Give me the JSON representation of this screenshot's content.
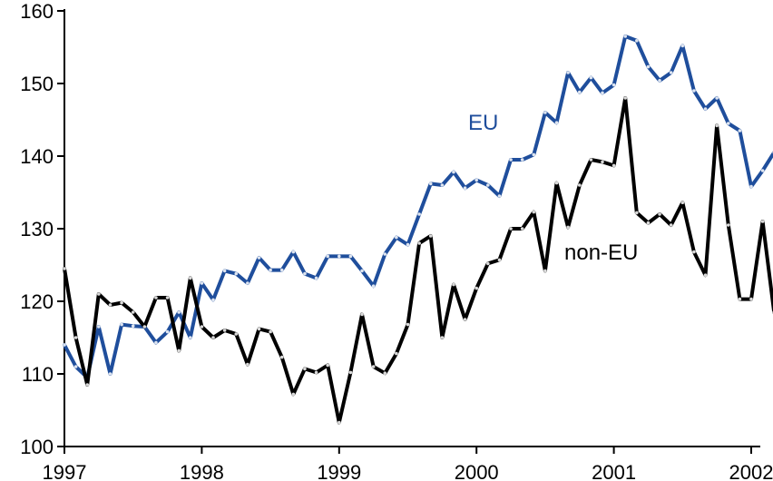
{
  "chart_data": {
    "type": "line",
    "title": "",
    "xlabel": "",
    "ylabel": "",
    "ylim": [
      100,
      160
    ],
    "xlim": [
      "1997-01",
      "2002-03"
    ],
    "y_ticks": [
      100,
      110,
      120,
      130,
      140,
      150,
      160
    ],
    "y_tick_labels": [
      "100",
      "110",
      "120",
      "130",
      "140",
      "150",
      "160"
    ],
    "x_ticks": [
      "1997-01",
      "1998-01",
      "1999-01",
      "2000-01",
      "2001-01",
      "2002-01"
    ],
    "x_tick_labels": [
      "1997",
      "1998",
      "1999",
      "2000",
      "2001",
      "2002"
    ],
    "grid": false,
    "legend": "inline labels",
    "series": [
      {
        "name": "EU",
        "color": "#1f4e9c",
        "x": [
          "1997-01",
          "1997-02",
          "1997-03",
          "1997-04",
          "1997-05",
          "1997-06",
          "1997-07",
          "1997-08",
          "1997-09",
          "1997-10",
          "1997-11",
          "1997-12",
          "1998-01",
          "1998-02",
          "1998-03",
          "1998-04",
          "1998-05",
          "1998-06",
          "1998-07",
          "1998-08",
          "1998-09",
          "1998-10",
          "1998-11",
          "1998-12",
          "1999-01",
          "1999-02",
          "1999-03",
          "1999-04",
          "1999-05",
          "1999-06",
          "1999-07",
          "1999-08",
          "1999-09",
          "1999-10",
          "1999-11",
          "1999-12",
          "2000-01",
          "2000-02",
          "2000-03",
          "2000-04",
          "2000-05",
          "2000-06",
          "2000-07",
          "2000-08",
          "2000-09",
          "2000-10",
          "2000-11",
          "2000-12",
          "2001-01",
          "2001-02",
          "2001-03",
          "2001-04",
          "2001-05",
          "2001-06",
          "2001-07",
          "2001-08",
          "2001-09",
          "2001-10",
          "2001-11",
          "2001-12",
          "2002-01",
          "2002-02",
          "2002-03"
        ],
        "y": [
          114.0,
          111.0,
          109.5,
          116.5,
          110.0,
          116.8,
          116.6,
          116.5,
          114.3,
          115.8,
          118.5,
          115.0,
          122.5,
          120.2,
          124.2,
          123.8,
          122.5,
          126.0,
          124.3,
          124.3,
          126.8,
          123.8,
          123.2,
          126.2,
          126.2,
          126.2,
          124.2,
          122.1,
          126.5,
          128.8,
          127.8,
          132.0,
          136.2,
          136.0,
          137.8,
          135.6,
          136.7,
          136.0,
          134.5,
          139.5,
          139.5,
          140.2,
          146.0,
          144.6,
          151.5,
          148.8,
          150.8,
          148.7,
          149.8,
          156.5,
          155.9,
          152.3,
          150.4,
          151.5,
          155.2,
          149.0,
          146.5,
          148.0,
          144.5,
          143.5,
          135.8,
          138.0,
          140.5
        ]
      },
      {
        "name": "non-EU",
        "color": "#000000",
        "x": [
          "1997-01",
          "1997-02",
          "1997-03",
          "1997-04",
          "1997-05",
          "1997-06",
          "1997-07",
          "1997-08",
          "1997-09",
          "1997-10",
          "1997-11",
          "1997-12",
          "1998-01",
          "1998-02",
          "1998-03",
          "1998-04",
          "1998-05",
          "1998-06",
          "1998-07",
          "1998-08",
          "1998-09",
          "1998-10",
          "1998-11",
          "1998-12",
          "1999-01",
          "1999-02",
          "1999-03",
          "1999-04",
          "1999-05",
          "1999-06",
          "1999-07",
          "1999-08",
          "1999-09",
          "1999-10",
          "1999-11",
          "1999-12",
          "2000-01",
          "2000-02",
          "2000-03",
          "2000-04",
          "2000-05",
          "2000-06",
          "2000-07",
          "2000-08",
          "2000-09",
          "2000-10",
          "2000-11",
          "2000-12",
          "2001-01",
          "2001-02",
          "2001-03",
          "2001-04",
          "2001-05",
          "2001-06",
          "2001-07",
          "2001-08",
          "2001-09",
          "2001-10",
          "2001-11",
          "2001-12",
          "2002-01",
          "2002-02",
          "2002-03"
        ],
        "y": [
          124.5,
          115.0,
          108.5,
          121.0,
          119.5,
          119.8,
          118.5,
          116.5,
          120.5,
          120.5,
          113.2,
          123.2,
          116.5,
          115.0,
          116.0,
          115.5,
          111.3,
          116.2,
          115.8,
          112.3,
          107.2,
          110.7,
          110.2,
          111.2,
          103.3,
          110.2,
          118.2,
          111.0,
          110.1,
          112.8,
          116.8,
          128.0,
          129.0,
          115.0,
          122.3,
          117.5,
          121.8,
          125.2,
          125.7,
          130.0,
          130.0,
          132.3,
          124.2,
          136.3,
          130.2,
          136.0,
          139.5,
          139.2,
          138.7,
          148.0,
          132.2,
          130.8,
          132.0,
          130.5,
          133.6,
          126.8,
          123.6,
          144.2,
          130.5,
          120.3,
          120.3,
          131.0,
          118.5
        ]
      }
    ],
    "annotations": [
      {
        "text": "EU",
        "series": "EU"
      },
      {
        "text": "non-EU",
        "series": "non-EU"
      }
    ]
  }
}
